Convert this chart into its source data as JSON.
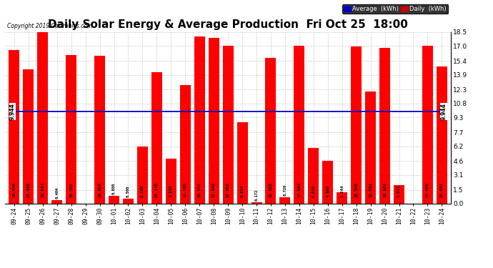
{
  "title": "Daily Solar Energy & Average Production  Fri Oct 25  18:00",
  "copyright": "Copyright 2019 Cartronics.com",
  "categories": [
    "09-24",
    "09-25",
    "09-26",
    "09-27",
    "09-28",
    "09-29",
    "09-30",
    "10-01",
    "10-02",
    "10-03",
    "10-04",
    "10-05",
    "10-06",
    "10-07",
    "10-08",
    "10-09",
    "10-10",
    "10-11",
    "10-12",
    "10-13",
    "10-14",
    "10-15",
    "10-16",
    "10-17",
    "10-18",
    "10-19",
    "10-20",
    "10-21",
    "10-22",
    "10-23",
    "10-24"
  ],
  "values": [
    16.548,
    14.468,
    18.504,
    0.404,
    16.032,
    0.0,
    15.92,
    0.88,
    0.508,
    6.18,
    14.148,
    4.84,
    12.78,
    18.072,
    17.848,
    17.056,
    8.816,
    0.172,
    15.696,
    0.72,
    17.064,
    6.016,
    4.6,
    1.244,
    16.948,
    12.092,
    16.82,
    2.016,
    0.0,
    17.056,
    14.804
  ],
  "average": 9.944,
  "bar_color": "#ff0000",
  "average_line_color": "#0000cc",
  "background_color": "#ffffff",
  "grid_color": "#bbbbbb",
  "title_fontsize": 11,
  "yticks": [
    0.0,
    1.5,
    3.1,
    4.6,
    6.2,
    7.7,
    9.3,
    10.8,
    12.3,
    13.9,
    15.4,
    17.0,
    18.5
  ],
  "legend_avg_color": "#0000cc",
  "legend_daily_color": "#cc0000",
  "legend_avg_label": "Average  (kWh)",
  "legend_daily_label": "Daily  (kWh)"
}
